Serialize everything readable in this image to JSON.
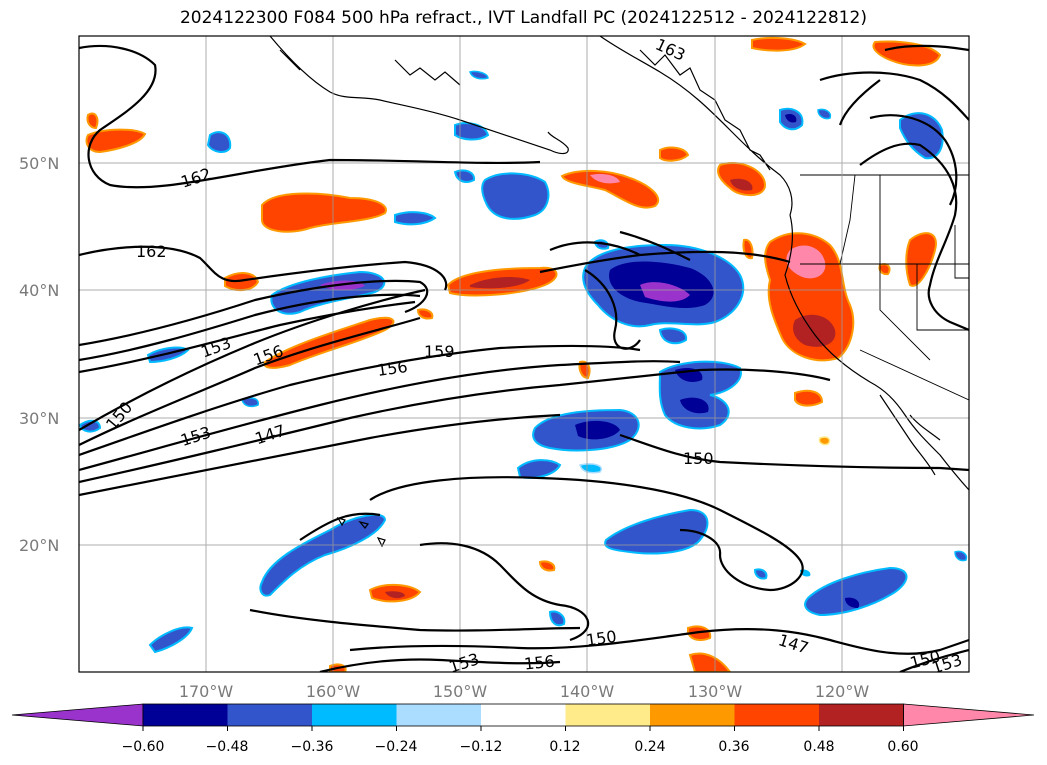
{
  "title": "2024122300 F084 500 hPa refract., IVT Landfall PC (2024122512 - 2024122812)",
  "map": {
    "projection": "lat-lon",
    "lon_range": [
      "180°",
      "110°W"
    ],
    "lat_range": [
      "10°N",
      "60°N"
    ],
    "lat_labels": [
      "50°N",
      "40°N",
      "30°N",
      "20°N"
    ],
    "lon_labels": [
      "170°W",
      "160°W",
      "150°W",
      "140°W",
      "130°W",
      "120°W"
    ],
    "contour_labels": [
      "162",
      "162",
      "153",
      "156",
      "150",
      "153",
      "147",
      "156",
      "159",
      "150",
      "150",
      "153",
      "156",
      "147",
      "150",
      "153",
      "163"
    ],
    "grid": true,
    "features": [
      "coastlines",
      "US state borders",
      "Canada-US border"
    ]
  },
  "colorbar": {
    "tick_labels": [
      "−0.60",
      "−0.48",
      "−0.36",
      "−0.24",
      "−0.12",
      "0.12",
      "0.24",
      "0.36",
      "0.48",
      "0.60"
    ],
    "colors": [
      "#9933cc",
      "#000096",
      "#3355cc",
      "#00bbff",
      "#aaddff",
      "#ffffff",
      "#ffeb8a",
      "#ff9900",
      "#ff4400",
      "#b22222",
      "#ff88aa"
    ],
    "extend": "both"
  }
}
